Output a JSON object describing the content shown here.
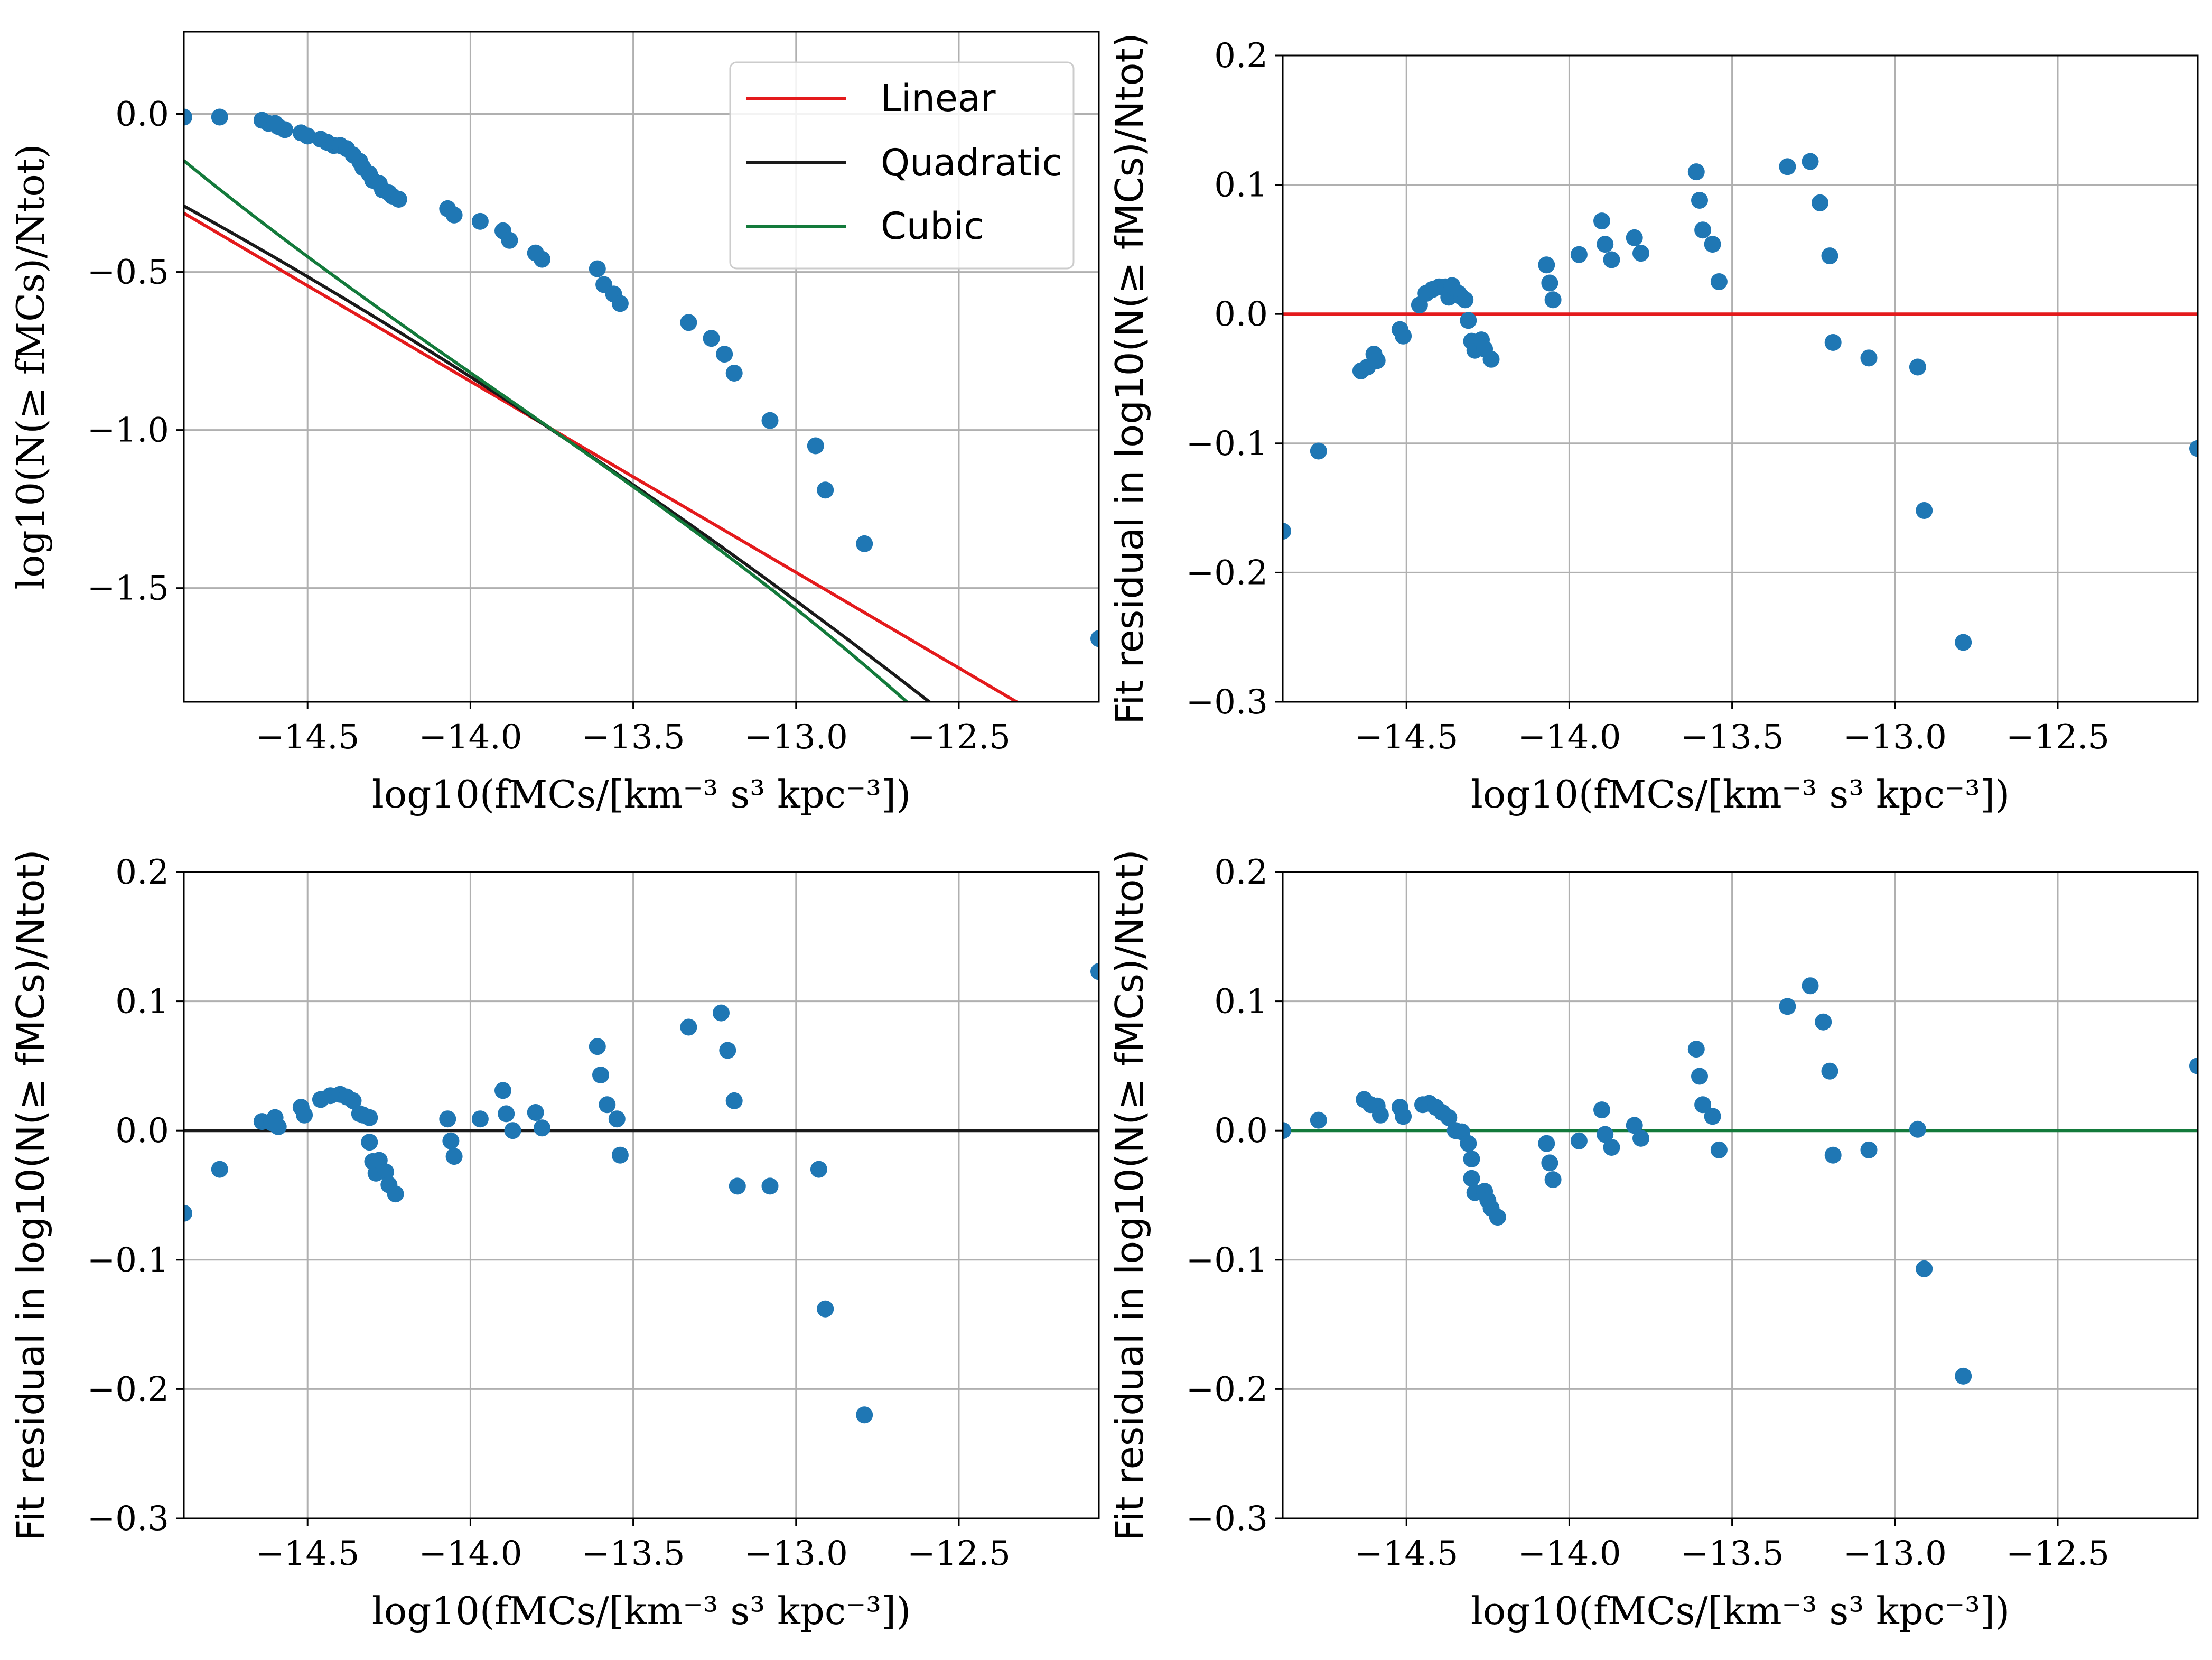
{
  "colors": {
    "points": "#1f77b4",
    "linear": "#e41a1c",
    "quadratic": "#1a1a1a",
    "cubic": "#137a3b",
    "grid": "#b0b0b0"
  },
  "labels": {
    "xlabel": "log10(fMCs/[km⁻³ s³ kpc⁻³])",
    "ylabel_main": "log10(N(≥ fMCs)/Ntot)",
    "ylabel_residual": "Fit residual in log10(N(≥ fMCs)/Ntot)"
  },
  "legend": {
    "linear": "Linear",
    "quadratic": "Quadratic",
    "cubic": "Cubic"
  },
  "chart_data": [
    {
      "id": "fit",
      "type": "scatter",
      "title": "",
      "xlabel": "log10(fMCs/[km⁻³ s³ kpc⁻³])",
      "ylabel": "log10(N(≥ fMCs)/Ntot)",
      "xlim": [
        -14.88,
        -12.07
      ],
      "ylim": [
        -1.86,
        0.26
      ],
      "xticks": [
        -14.5,
        -14.0,
        -13.5,
        -13.0,
        -12.5
      ],
      "xtick_labels": [
        "−14.5",
        "−14.0",
        "−13.5",
        "−13.0",
        "−12.5"
      ],
      "yticks": [
        0.0,
        -0.5,
        -1.0,
        -1.5
      ],
      "ytick_labels": [
        "0.0",
        "−0.5",
        "−1.0",
        "−1.5"
      ],
      "grid": true,
      "legend_position": "top-right",
      "points": {
        "x": [
          -14.88,
          -14.77,
          -14.64,
          -14.62,
          -14.6,
          -14.59,
          -14.57,
          -14.52,
          -14.5,
          -14.46,
          -14.44,
          -14.42,
          -14.4,
          -14.38,
          -14.36,
          -14.34,
          -14.33,
          -14.31,
          -14.3,
          -14.28,
          -14.27,
          -14.25,
          -14.24,
          -14.22,
          -14.07,
          -14.05,
          -13.97,
          -13.9,
          -13.88,
          -13.8,
          -13.78,
          -13.61,
          -13.59,
          -13.56,
          -13.54,
          -13.33,
          -13.26,
          -13.22,
          -13.19,
          -13.08,
          -12.94,
          -12.91,
          -12.79,
          -12.07
        ],
        "y": [
          -0.01,
          -0.01,
          -0.02,
          -0.03,
          -0.03,
          -0.04,
          -0.05,
          -0.06,
          -0.07,
          -0.08,
          -0.09,
          -0.1,
          -0.1,
          -0.11,
          -0.13,
          -0.15,
          -0.17,
          -0.19,
          -0.21,
          -0.22,
          -0.24,
          -0.25,
          -0.26,
          -0.27,
          -0.3,
          -0.32,
          -0.34,
          -0.37,
          -0.4,
          -0.44,
          -0.46,
          -0.49,
          -0.54,
          -0.57,
          -0.6,
          -0.66,
          -0.71,
          -0.76,
          -0.82,
          -0.97,
          -1.05,
          -1.19,
          -1.36,
          -1.66
        ]
      },
      "series": [
        {
          "name": "Linear",
          "color_key": "linear",
          "coeffs": [
            -0.846,
            -0.6046
          ],
          "x0": -14.0
        },
        {
          "name": "Quadratic",
          "color_key": "quadratic",
          "coeffs": [
            -0.8318,
            -0.6585,
            -0.0504
          ],
          "x0": -14.0
        },
        {
          "name": "Cubic",
          "color_key": "cubic",
          "coeffs": [
            -0.8188,
            -0.7169,
            0.0134,
            -0.0435
          ],
          "x0": -14.0
        }
      ]
    },
    {
      "id": "residual-linear",
      "type": "scatter",
      "title": "",
      "xlabel": "log10(fMCs/[km⁻³ s³ kpc⁻³])",
      "ylabel": "Fit residual in log10(N(≥ fMCs)/Ntot)",
      "xlim": [
        -14.88,
        -12.07
      ],
      "ylim": [
        -0.3,
        0.2
      ],
      "xticks": [
        -14.5,
        -14.0,
        -13.5,
        -13.0,
        -12.5
      ],
      "xtick_labels": [
        "−14.5",
        "−14.0",
        "−13.5",
        "−13.0",
        "−12.5"
      ],
      "yticks": [
        0.2,
        0.1,
        0.0,
        -0.1,
        -0.2,
        -0.3
      ],
      "ytick_labels": [
        "0.2",
        "0.1",
        "0.0",
        "−0.1",
        "−0.2",
        "−0.3"
      ],
      "grid": true,
      "zero_line_color_key": "linear",
      "points": {
        "x": [
          -14.88,
          -14.77,
          -14.64,
          -14.62,
          -14.6,
          -14.59,
          -14.52,
          -14.51,
          -14.46,
          -14.44,
          -14.42,
          -14.4,
          -14.38,
          -14.37,
          -14.36,
          -14.34,
          -14.33,
          -14.32,
          -14.31,
          -14.3,
          -14.29,
          -14.27,
          -14.26,
          -14.24,
          -14.07,
          -14.06,
          -14.05,
          -13.97,
          -13.9,
          -13.89,
          -13.87,
          -13.8,
          -13.78,
          -13.61,
          -13.6,
          -13.59,
          -13.56,
          -13.54,
          -13.33,
          -13.26,
          -13.23,
          -13.2,
          -13.19,
          -13.08,
          -12.93,
          -12.91,
          -12.79,
          -12.07
        ],
        "y": [
          -0.168,
          -0.106,
          -0.044,
          -0.041,
          -0.031,
          -0.036,
          -0.012,
          -0.017,
          0.007,
          0.016,
          0.019,
          0.021,
          0.021,
          0.013,
          0.022,
          0.016,
          0.013,
          0.011,
          -0.005,
          -0.021,
          -0.028,
          -0.02,
          -0.027,
          -0.035,
          0.038,
          0.024,
          0.011,
          0.046,
          0.072,
          0.054,
          0.042,
          0.059,
          0.047,
          0.11,
          0.088,
          0.065,
          0.054,
          0.025,
          0.114,
          0.118,
          0.086,
          0.045,
          -0.022,
          -0.034,
          -0.041,
          -0.152,
          -0.254,
          -0.104
        ]
      }
    },
    {
      "id": "residual-quadratic",
      "type": "scatter",
      "title": "",
      "xlabel": "log10(fMCs/[km⁻³ s³ kpc⁻³])",
      "ylabel": "Fit residual in log10(N(≥ fMCs)/Ntot)",
      "xlim": [
        -14.88,
        -12.07
      ],
      "ylim": [
        -0.3,
        0.2
      ],
      "xticks": [
        -14.5,
        -14.0,
        -13.5,
        -13.0,
        -12.5
      ],
      "xtick_labels": [
        "−14.5",
        "−14.0",
        "−13.5",
        "−13.0",
        "−12.5"
      ],
      "yticks": [
        0.2,
        0.1,
        0.0,
        -0.1,
        -0.2,
        -0.3
      ],
      "ytick_labels": [
        "0.2",
        "0.1",
        "0.0",
        "−0.1",
        "−0.2",
        "−0.3"
      ],
      "grid": true,
      "zero_line_color_key": "quadratic",
      "points": {
        "x": [
          -14.88,
          -14.77,
          -14.64,
          -14.61,
          -14.6,
          -14.59,
          -14.52,
          -14.51,
          -14.46,
          -14.43,
          -14.4,
          -14.38,
          -14.36,
          -14.34,
          -14.33,
          -14.31,
          -14.31,
          -14.3,
          -14.29,
          -14.28,
          -14.26,
          -14.25,
          -14.23,
          -14.07,
          -14.06,
          -14.05,
          -13.97,
          -13.9,
          -13.89,
          -13.87,
          -13.8,
          -13.78,
          -13.61,
          -13.6,
          -13.58,
          -13.55,
          -13.54,
          -13.33,
          -13.23,
          -13.21,
          -13.19,
          -13.18,
          -13.08,
          -12.93,
          -12.91,
          -12.79,
          -12.07
        ],
        "y": [
          -0.064,
          -0.03,
          0.007,
          0.006,
          0.01,
          0.003,
          0.018,
          0.012,
          0.024,
          0.027,
          0.028,
          0.026,
          0.023,
          0.013,
          0.012,
          0.01,
          -0.009,
          -0.024,
          -0.033,
          -0.023,
          -0.032,
          -0.042,
          -0.049,
          0.009,
          -0.008,
          -0.02,
          0.009,
          0.031,
          0.013,
          0.0,
          0.014,
          0.002,
          0.065,
          0.043,
          0.02,
          0.009,
          -0.019,
          0.08,
          0.091,
          0.062,
          0.023,
          -0.043,
          -0.043,
          -0.03,
          -0.138,
          -0.22,
          0.123
        ]
      }
    },
    {
      "id": "residual-cubic",
      "type": "scatter",
      "title": "",
      "xlabel": "log10(fMCs/[km⁻³ s³ kpc⁻³])",
      "ylabel": "Fit residual in log10(N(≥ fMCs)/Ntot)",
      "xlim": [
        -14.88,
        -12.07
      ],
      "ylim": [
        -0.3,
        0.2
      ],
      "xticks": [
        -14.5,
        -14.0,
        -13.5,
        -13.0,
        -12.5
      ],
      "xtick_labels": [
        "−14.5",
        "−14.0",
        "−13.5",
        "−13.0",
        "−12.5"
      ],
      "yticks": [
        0.2,
        0.1,
        0.0,
        -0.1,
        -0.2,
        -0.3
      ],
      "ytick_labels": [
        "0.2",
        "0.1",
        "0.0",
        "−0.1",
        "−0.2",
        "−0.3"
      ],
      "grid": true,
      "zero_line_color_key": "cubic",
      "points": {
        "x": [
          -14.88,
          -14.77,
          -14.63,
          -14.61,
          -14.59,
          -14.58,
          -14.52,
          -14.51,
          -14.45,
          -14.43,
          -14.41,
          -14.39,
          -14.37,
          -14.35,
          -14.33,
          -14.31,
          -14.3,
          -14.3,
          -14.29,
          -14.26,
          -14.25,
          -14.24,
          -14.22,
          -14.07,
          -14.06,
          -14.05,
          -13.97,
          -13.9,
          -13.89,
          -13.87,
          -13.8,
          -13.78,
          -13.61,
          -13.6,
          -13.59,
          -13.56,
          -13.54,
          -13.33,
          -13.26,
          -13.22,
          -13.2,
          -13.19,
          -13.08,
          -12.93,
          -12.91,
          -12.79,
          -12.07
        ],
        "y": [
          0.0,
          0.008,
          0.024,
          0.02,
          0.019,
          0.012,
          0.018,
          0.011,
          0.02,
          0.021,
          0.018,
          0.014,
          0.01,
          0.0,
          -0.001,
          -0.01,
          -0.022,
          -0.037,
          -0.048,
          -0.047,
          -0.054,
          -0.06,
          -0.067,
          -0.01,
          -0.025,
          -0.038,
          -0.008,
          0.016,
          -0.003,
          -0.013,
          0.004,
          -0.006,
          0.063,
          0.042,
          0.02,
          0.011,
          -0.015,
          0.096,
          0.112,
          0.084,
          0.046,
          -0.019,
          -0.015,
          0.001,
          -0.107,
          -0.19,
          0.05
        ]
      }
    }
  ]
}
